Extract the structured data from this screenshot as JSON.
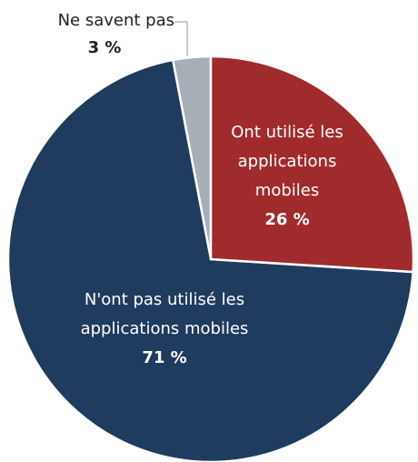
{
  "chart_data": {
    "type": "pie",
    "categories": [
      "Ont utilisé les applications mobiles",
      "N'ont pas utilisé les applications mobiles",
      "Ne savent pas"
    ],
    "values": [
      26,
      71,
      3
    ],
    "value_labels": [
      "26 %",
      "71 %",
      "3 %"
    ],
    "colors": [
      "#a02b2d",
      "#1f3b5e",
      "#a6afb6"
    ]
  }
}
